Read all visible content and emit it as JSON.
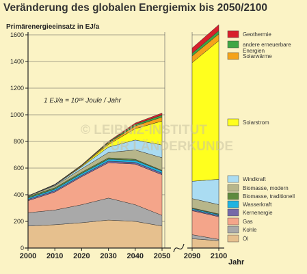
{
  "chart_data": {
    "type": "area",
    "title": "Veränderung des globalen Energiemix bis 2050/2100",
    "ylabel": "Primärenergieeinsatz in EJ/a",
    "xlabel": "Jahr",
    "x": [
      2000,
      2010,
      2020,
      2030,
      2040,
      2050,
      2090,
      2100
    ],
    "x_tick_labels": [
      "2000",
      "2010",
      "2020",
      "2030",
      "2040",
      "2050",
      "2090",
      "2100"
    ],
    "ylim": [
      0,
      1600
    ],
    "y_ticks": [
      0,
      200,
      400,
      600,
      800,
      1000,
      1200,
      1400,
      1600
    ],
    "note": "1 EJ/a = 10¹⁸ Joule / Jahr",
    "watermark": [
      "© LEIBNIZ-INSTITUT",
      "FÜR LÄNDERKUNDE"
    ],
    "series": [
      {
        "name": "Öl",
        "color": "#e6c08e",
        "values": [
          165,
          175,
          190,
          210,
          200,
          165,
          70,
          55
        ]
      },
      {
        "name": "Kohle",
        "color": "#a9a9a9",
        "values": [
          100,
          110,
          135,
          165,
          125,
          80,
          30,
          10
        ]
      },
      {
        "name": "Gas",
        "color": "#f4a58a",
        "values": [
          90,
          135,
          210,
          265,
          305,
          305,
          180,
          170
        ]
      },
      {
        "name": "Kernenergie",
        "color": "#7569a8",
        "values": [
          10,
          10,
          10,
          12,
          12,
          12,
          8,
          8
        ]
      },
      {
        "name": "Wasserkraft",
        "color": "#20b3e0",
        "values": [
          10,
          12,
          14,
          15,
          16,
          16,
          8,
          8
        ]
      },
      {
        "name": "Biomasse, traditionell",
        "color": "#5e8a3e",
        "values": [
          10,
          10,
          10,
          10,
          8,
          5,
          5,
          5
        ]
      },
      {
        "name": "Biomasse, modern",
        "color": "#b7b68a",
        "values": [
          5,
          15,
          25,
          40,
          70,
          95,
          70,
          70
        ]
      },
      {
        "name": "Windkraft",
        "color": "#aadcf2",
        "values": [
          1,
          5,
          15,
          40,
          75,
          95,
          130,
          190
        ]
      },
      {
        "name": "Solarstrom",
        "color": "#ffff1e",
        "values": [
          0,
          2,
          5,
          20,
          85,
          180,
          890,
          1040
        ]
      },
      {
        "name": "Solarwärme",
        "color": "#f5a31a",
        "values": [
          0,
          2,
          5,
          10,
          20,
          30,
          50,
          50
        ]
      },
      {
        "name": "andere erneuerbare Energien",
        "color": "#3ea645",
        "values": [
          0,
          1,
          3,
          8,
          12,
          15,
          20,
          25
        ]
      },
      {
        "name": "Geothermie",
        "color": "#d8202c",
        "values": [
          0,
          1,
          2,
          5,
          10,
          15,
          40,
          45
        ]
      }
    ],
    "legend_top": [
      {
        "name": "Geothermie",
        "color": "#d8202c"
      },
      {
        "name": "andere erneuerbare Energien",
        "color": "#3ea645"
      },
      {
        "name": "Solarwärme",
        "color": "#f5a31a"
      }
    ],
    "legend_mid": [
      {
        "name": "Solarstrom",
        "color": "#ffff1e"
      }
    ],
    "legend_bottom": [
      {
        "name": "Windkraft",
        "color": "#aadcf2"
      },
      {
        "name": "Biomasse, modern",
        "color": "#b7b68a"
      },
      {
        "name": "Biomasse, traditionell",
        "color": "#5e8a3e"
      },
      {
        "name": "Wasserkraft",
        "color": "#20b3e0"
      },
      {
        "name": "Kernenergie",
        "color": "#7569a8"
      },
      {
        "name": "Gas",
        "color": "#f4a58a"
      },
      {
        "name": "Kohle",
        "color": "#a9a9a9"
      },
      {
        "name": "Öl",
        "color": "#e6c08e"
      }
    ]
  }
}
